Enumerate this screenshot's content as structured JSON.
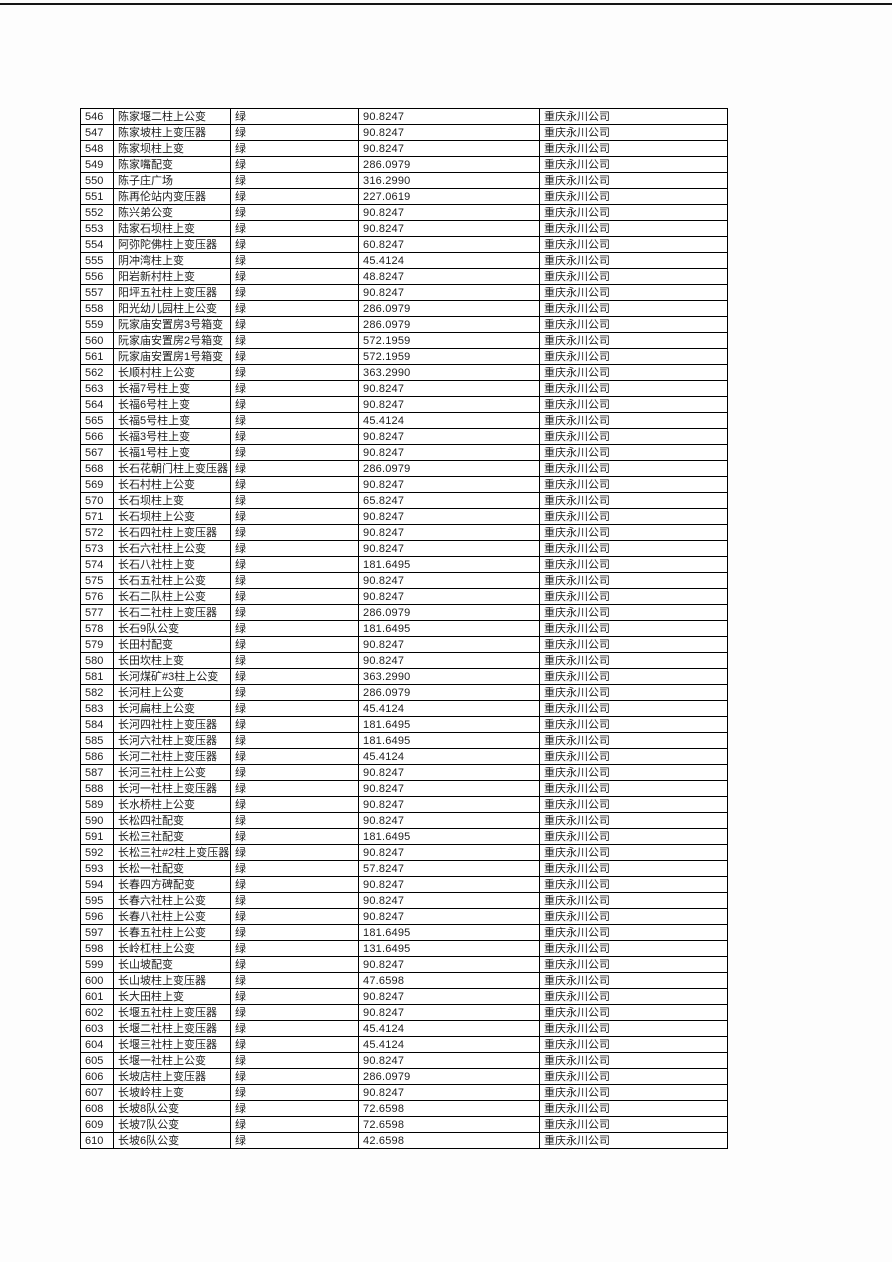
{
  "page": {
    "background_color": "#fdfdfd",
    "top_rule_color": "#151515"
  },
  "table": {
    "columns": [
      {
        "key": "row_number",
        "name": "row-number"
      },
      {
        "key": "device_name",
        "name": "device-name"
      },
      {
        "key": "status",
        "name": "status"
      },
      {
        "key": "value",
        "name": "value"
      },
      {
        "key": "company",
        "name": "company"
      }
    ],
    "status_label": "绿",
    "company_label": "重庆永川公司",
    "rows": [
      [
        "546",
        "陈家堰二柱上公变",
        "绿",
        "90.8247",
        "重庆永川公司"
      ],
      [
        "547",
        "陈家坡柱上变压器",
        "绿",
        "90.8247",
        "重庆永川公司"
      ],
      [
        "548",
        "陈家坝柱上变",
        "绿",
        "90.8247",
        "重庆永川公司"
      ],
      [
        "549",
        "陈家嘴配变",
        "绿",
        "286.0979",
        "重庆永川公司"
      ],
      [
        "550",
        "陈子庄广场",
        "绿",
        "316.2990",
        "重庆永川公司"
      ],
      [
        "551",
        "陈再伦站内变压器",
        "绿",
        "227.0619",
        "重庆永川公司"
      ],
      [
        "552",
        "陈兴弟公变",
        "绿",
        "90.8247",
        "重庆永川公司"
      ],
      [
        "553",
        "陆家石坝柱上变",
        "绿",
        "90.8247",
        "重庆永川公司"
      ],
      [
        "554",
        "阿弥陀佛柱上变压器",
        "绿",
        "60.8247",
        "重庆永川公司"
      ],
      [
        "555",
        "阴冲湾柱上变",
        "绿",
        "45.4124",
        "重庆永川公司"
      ],
      [
        "556",
        "阳岩新村柱上变",
        "绿",
        "48.8247",
        "重庆永川公司"
      ],
      [
        "557",
        "阳坪五社柱上变压器",
        "绿",
        "90.8247",
        "重庆永川公司"
      ],
      [
        "558",
        "阳光幼儿园柱上公变",
        "绿",
        "286.0979",
        "重庆永川公司"
      ],
      [
        "559",
        "阮家庙安置房3号箱变",
        "绿",
        "286.0979",
        "重庆永川公司"
      ],
      [
        "560",
        "阮家庙安置房2号箱变",
        "绿",
        "572.1959",
        "重庆永川公司"
      ],
      [
        "561",
        "阮家庙安置房1号箱变",
        "绿",
        "572.1959",
        "重庆永川公司"
      ],
      [
        "562",
        "长顺村柱上公变",
        "绿",
        "363.2990",
        "重庆永川公司"
      ],
      [
        "563",
        "长福7号柱上变",
        "绿",
        "90.8247",
        "重庆永川公司"
      ],
      [
        "564",
        "长福6号柱上变",
        "绿",
        "90.8247",
        "重庆永川公司"
      ],
      [
        "565",
        "长福5号柱上变",
        "绿",
        "45.4124",
        "重庆永川公司"
      ],
      [
        "566",
        "长福3号柱上变",
        "绿",
        "90.8247",
        "重庆永川公司"
      ],
      [
        "567",
        "长福1号柱上变",
        "绿",
        "90.8247",
        "重庆永川公司"
      ],
      [
        "568",
        "长石花朝门柱上变压器",
        "绿",
        "286.0979",
        "重庆永川公司"
      ],
      [
        "569",
        "长石村柱上公变",
        "绿",
        "90.8247",
        "重庆永川公司"
      ],
      [
        "570",
        "长石坝柱上变",
        "绿",
        "65.8247",
        "重庆永川公司"
      ],
      [
        "571",
        "长石坝柱上公变",
        "绿",
        "90.8247",
        "重庆永川公司"
      ],
      [
        "572",
        "长石四社柱上变压器",
        "绿",
        "90.8247",
        "重庆永川公司"
      ],
      [
        "573",
        "长石六社柱上公变",
        "绿",
        "90.8247",
        "重庆永川公司"
      ],
      [
        "574",
        "长石八社柱上变",
        "绿",
        "181.6495",
        "重庆永川公司"
      ],
      [
        "575",
        "长石五社柱上公变",
        "绿",
        "90.8247",
        "重庆永川公司"
      ],
      [
        "576",
        "长石二队柱上公变",
        "绿",
        "90.8247",
        "重庆永川公司"
      ],
      [
        "577",
        "长石二社柱上变压器",
        "绿",
        "286.0979",
        "重庆永川公司"
      ],
      [
        "578",
        "长石9队公变",
        "绿",
        "181.6495",
        "重庆永川公司"
      ],
      [
        "579",
        "长田村配变",
        "绿",
        "90.8247",
        "重庆永川公司"
      ],
      [
        "580",
        "长田坎柱上变",
        "绿",
        "90.8247",
        "重庆永川公司"
      ],
      [
        "581",
        "长河煤矿#3柱上公变",
        "绿",
        "363.2990",
        "重庆永川公司"
      ],
      [
        "582",
        "长河柱上公变",
        "绿",
        "286.0979",
        "重庆永川公司"
      ],
      [
        "583",
        "长河扁柱上公变",
        "绿",
        "45.4124",
        "重庆永川公司"
      ],
      [
        "584",
        "长河四社柱上变压器",
        "绿",
        "181.6495",
        "重庆永川公司"
      ],
      [
        "585",
        "长河六社柱上变压器",
        "绿",
        "181.6495",
        "重庆永川公司"
      ],
      [
        "586",
        "长河二社柱上变压器",
        "绿",
        "45.4124",
        "重庆永川公司"
      ],
      [
        "587",
        "长河三社柱上公变",
        "绿",
        "90.8247",
        "重庆永川公司"
      ],
      [
        "588",
        "长河一社柱上变压器",
        "绿",
        "90.8247",
        "重庆永川公司"
      ],
      [
        "589",
        "长水桥柱上公变",
        "绿",
        "90.8247",
        "重庆永川公司"
      ],
      [
        "590",
        "长松四社配变",
        "绿",
        "90.8247",
        "重庆永川公司"
      ],
      [
        "591",
        "长松三社配变",
        "绿",
        "181.6495",
        "重庆永川公司"
      ],
      [
        "592",
        "长松三社#2柱上变压器",
        "绿",
        "90.8247",
        "重庆永川公司"
      ],
      [
        "593",
        "长松一社配变",
        "绿",
        "57.8247",
        "重庆永川公司"
      ],
      [
        "594",
        "长春四方碑配变",
        "绿",
        "90.8247",
        "重庆永川公司"
      ],
      [
        "595",
        "长春六社柱上公变",
        "绿",
        "90.8247",
        "重庆永川公司"
      ],
      [
        "596",
        "长春八社柱上公变",
        "绿",
        "90.8247",
        "重庆永川公司"
      ],
      [
        "597",
        "长春五社柱上公变",
        "绿",
        "181.6495",
        "重庆永川公司"
      ],
      [
        "598",
        "长岭杠柱上公变",
        "绿",
        "131.6495",
        "重庆永川公司"
      ],
      [
        "599",
        "长山坡配变",
        "绿",
        "90.8247",
        "重庆永川公司"
      ],
      [
        "600",
        "长山坡柱上变压器",
        "绿",
        "47.6598",
        "重庆永川公司"
      ],
      [
        "601",
        "长大田柱上变",
        "绿",
        "90.8247",
        "重庆永川公司"
      ],
      [
        "602",
        "长堰五社柱上变压器",
        "绿",
        "90.8247",
        "重庆永川公司"
      ],
      [
        "603",
        "长堰二社柱上变压器",
        "绿",
        "45.4124",
        "重庆永川公司"
      ],
      [
        "604",
        "长堰三社柱上变压器",
        "绿",
        "45.4124",
        "重庆永川公司"
      ],
      [
        "605",
        "长堰一社柱上公变",
        "绿",
        "90.8247",
        "重庆永川公司"
      ],
      [
        "606",
        "长坡店柱上变压器",
        "绿",
        "286.0979",
        "重庆永川公司"
      ],
      [
        "607",
        "长坡岭柱上变",
        "绿",
        "90.8247",
        "重庆永川公司"
      ],
      [
        "608",
        "长坡8队公变",
        "绿",
        "72.6598",
        "重庆永川公司"
      ],
      [
        "609",
        "长坡7队公变",
        "绿",
        "72.6598",
        "重庆永川公司"
      ],
      [
        "610",
        "长坡6队公变",
        "绿",
        "42.6598",
        "重庆永川公司"
      ]
    ]
  }
}
